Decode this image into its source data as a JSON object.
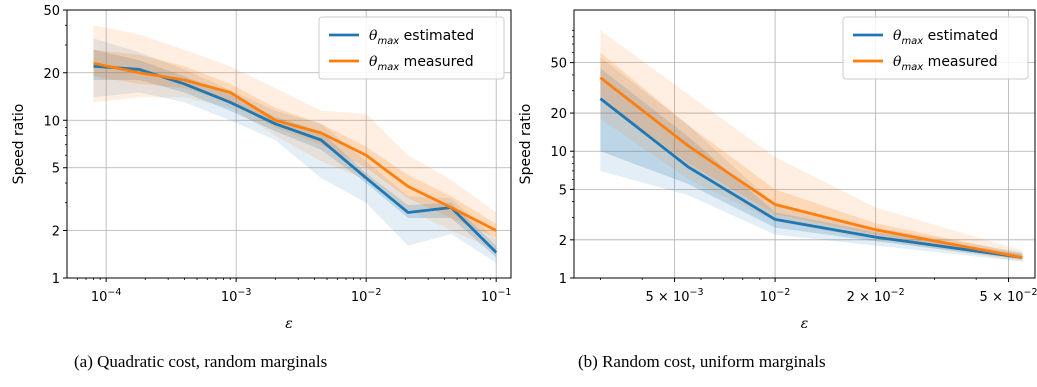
{
  "captions": {
    "a": "(a) Quadratic cost, random marginals",
    "b": "(b) Random cost, uniform marginals"
  },
  "colors": {
    "estimated": "#1f77b4",
    "measured": "#ff7f0e",
    "grid": "#b0b0b0"
  },
  "chart_data": [
    {
      "type": "line",
      "xscale": "log",
      "yscale": "log",
      "xlabel": "ε",
      "ylabel": "Speed ratio",
      "xlim": [
        5e-05,
        0.13
      ],
      "ylim": [
        1,
        50
      ],
      "x_ticks": [
        {
          "value": 0.0001,
          "base": "10",
          "exp": "−4"
        },
        {
          "value": 0.001,
          "base": "10",
          "exp": "−3"
        },
        {
          "value": 0.01,
          "base": "10",
          "exp": "−2"
        },
        {
          "value": 0.1,
          "base": "10",
          "exp": "−1"
        }
      ],
      "y_ticks": [
        {
          "value": 1,
          "label": "1"
        },
        {
          "value": 2,
          "label": "2"
        },
        {
          "value": 5,
          "label": "5"
        },
        {
          "value": 10,
          "label": "10"
        },
        {
          "value": 20,
          "label": "20"
        },
        {
          "value": 50,
          "label": "50"
        }
      ],
      "grid": true,
      "legend_position": "top-right",
      "series": [
        {
          "key": "estimated",
          "legend_main": "θ",
          "legend_sub": "max",
          "legend_rest": " estimated",
          "x": [
            8e-05,
            0.00018,
            0.0004,
            0.0009,
            0.002,
            0.0045,
            0.01,
            0.021,
            0.045,
            0.1
          ],
          "y": [
            22,
            21,
            17,
            13,
            9.5,
            7.5,
            4.3,
            2.6,
            2.8,
            1.45
          ],
          "band_inner_low": [
            18,
            18,
            15,
            11.5,
            8.5,
            6.5,
            4.0,
            2.4,
            2.4,
            1.35
          ],
          "band_inner_high": [
            28,
            24,
            19,
            14.5,
            10.5,
            8.5,
            4.6,
            2.9,
            3.0,
            1.6
          ],
          "band_outer_low": [
            14,
            15,
            13,
            10,
            7.5,
            4.3,
            3.0,
            1.6,
            1.9,
            1.25
          ],
          "band_outer_high": [
            33,
            27,
            21,
            15.5,
            11.5,
            9.5,
            5.5,
            3.3,
            3.2,
            1.75
          ]
        },
        {
          "key": "measured",
          "legend_main": "θ",
          "legend_sub": "max",
          "legend_rest": " measured",
          "x": [
            8e-05,
            0.00018,
            0.0004,
            0.0009,
            0.002,
            0.0045,
            0.01,
            0.021,
            0.045,
            0.1
          ],
          "y": [
            23,
            20,
            18,
            15,
            10,
            8.3,
            6,
            3.8,
            2.8,
            2.0
          ],
          "band_inner_low": [
            19,
            17,
            16,
            13,
            9,
            7,
            5,
            3.2,
            2.4,
            1.8
          ],
          "band_inner_high": [
            28,
            26,
            22,
            17,
            12,
            9.5,
            6.8,
            4.5,
            3.3,
            2.2
          ],
          "band_outer_low": [
            13,
            14,
            14,
            12,
            8,
            5.5,
            4.2,
            2.7,
            2.0,
            1.5
          ],
          "band_outer_high": [
            40,
            35,
            28,
            22,
            16,
            11.5,
            11,
            6,
            4.2,
            2.6
          ]
        }
      ]
    },
    {
      "type": "line",
      "xscale": "log",
      "yscale": "log",
      "xlabel": "ε",
      "ylabel": "Speed ratio",
      "xlim": [
        0.0025,
        0.06
      ],
      "ylim": [
        1,
        130
      ],
      "x_ticks": [
        {
          "value": 0.005,
          "base": "5 × 10",
          "exp": "−3"
        },
        {
          "value": 0.01,
          "base": "10",
          "exp": "−2"
        },
        {
          "value": 0.02,
          "base": "2 × 10",
          "exp": "−2"
        },
        {
          "value": 0.05,
          "base": "5 × 10",
          "exp": "−2"
        }
      ],
      "y_ticks": [
        {
          "value": 1,
          "label": "1"
        },
        {
          "value": 2,
          "label": "2"
        },
        {
          "value": 5,
          "label": "5"
        },
        {
          "value": 10,
          "label": "10"
        },
        {
          "value": 20,
          "label": "20"
        },
        {
          "value": 50,
          "label": "50"
        }
      ],
      "grid": true,
      "legend_position": "top-right",
      "series": [
        {
          "key": "estimated",
          "legend_main": "θ",
          "legend_sub": "max",
          "legend_rest": " estimated",
          "x": [
            0.003,
            0.0055,
            0.01,
            0.02,
            0.055
          ],
          "y": [
            26,
            7.5,
            2.9,
            2.1,
            1.45
          ],
          "band_inner_low": [
            10,
            5.5,
            2.5,
            1.95,
            1.4
          ],
          "band_inner_high": [
            45,
            13,
            3.3,
            2.3,
            1.55
          ],
          "band_outer_low": [
            7,
            4.5,
            2.2,
            1.8,
            1.35
          ],
          "band_outer_high": [
            55,
            16,
            3.8,
            2.5,
            1.6
          ]
        },
        {
          "key": "measured",
          "legend_main": "θ",
          "legend_sub": "max",
          "legend_rest": " measured",
          "x": [
            0.003,
            0.0055,
            0.01,
            0.02,
            0.055
          ],
          "y": [
            38,
            11,
            3.8,
            2.4,
            1.45
          ],
          "band_inner_low": [
            26,
            8,
            3.2,
            2.2,
            1.4
          ],
          "band_inner_high": [
            60,
            16,
            5,
            2.7,
            1.55
          ],
          "band_outer_low": [
            18,
            6,
            2.8,
            2.0,
            1.35
          ],
          "band_outer_high": [
            90,
            28,
            9,
            3.6,
            1.65
          ]
        }
      ]
    }
  ]
}
